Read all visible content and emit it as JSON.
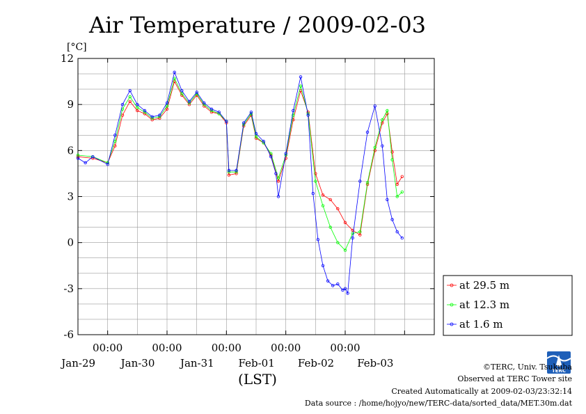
{
  "chart_data": {
    "type": "line",
    "title": "Air Temperature / 2009-02-03",
    "ylabel": "[°C]",
    "xlabel": "(LST)",
    "ylim": [
      -6,
      12
    ],
    "yticks": [
      "12",
      "9",
      "6",
      "3",
      "0",
      "-3",
      "-6"
    ],
    "xlim": [
      "2009-01-28T12:00",
      "2009-02-03T12:00"
    ],
    "xticks": [
      {
        "time": "00:00",
        "date": "Jan-29"
      },
      {
        "time": "00:00",
        "date": "Jan-30"
      },
      {
        "time": "00:00",
        "date": "Jan-31"
      },
      {
        "time": "00:00",
        "date": "Feb-01"
      },
      {
        "time": "00:00",
        "date": "Feb-02"
      },
      {
        "time": "",
        "date": "Feb-03"
      }
    ],
    "grid": true,
    "legend_position": "right-bottom",
    "series": [
      {
        "name": "at 29.5 m",
        "color": "#ff0000",
        "x": [
          "2009-01-28T12:00",
          "2009-01-28T18:00",
          "2009-01-29T00:00",
          "2009-01-29T03:00",
          "2009-01-29T06:00",
          "2009-01-29T09:00",
          "2009-01-29T12:00",
          "2009-01-29T15:00",
          "2009-01-29T18:00",
          "2009-01-29T21:00",
          "2009-01-30T00:00",
          "2009-01-30T03:00",
          "2009-01-30T06:00",
          "2009-01-30T09:00",
          "2009-01-30T12:00",
          "2009-01-30T15:00",
          "2009-01-30T18:00",
          "2009-01-30T21:00",
          "2009-01-31T00:00",
          "2009-01-31T01:00",
          "2009-01-31T04:00",
          "2009-01-31T07:00",
          "2009-01-31T10:00",
          "2009-01-31T12:00",
          "2009-01-31T15:00",
          "2009-01-31T18:00",
          "2009-01-31T21:00",
          "2009-02-01T00:00",
          "2009-02-01T03:00",
          "2009-02-01T06:00",
          "2009-02-01T09:00",
          "2009-02-01T12:00",
          "2009-02-01T15:00",
          "2009-02-01T18:00",
          "2009-02-01T21:00",
          "2009-02-02T00:00",
          "2009-02-02T03:00",
          "2009-02-02T06:00",
          "2009-02-02T09:00",
          "2009-02-02T12:00",
          "2009-02-02T15:00",
          "2009-02-02T17:00",
          "2009-02-02T19:00",
          "2009-02-02T21:00",
          "2009-02-02T23:00"
        ],
        "y": [
          5.6,
          5.5,
          5.2,
          6.3,
          8.3,
          9.2,
          8.6,
          8.4,
          8.0,
          8.1,
          8.7,
          10.5,
          9.6,
          9.0,
          9.6,
          8.9,
          8.5,
          8.4,
          7.8,
          4.4,
          4.5,
          7.6,
          8.3,
          6.8,
          6.5,
          5.7,
          4.0,
          5.5,
          8.0,
          9.9,
          8.5,
          4.5,
          3.1,
          2.8,
          2.2,
          1.3,
          0.8,
          0.5,
          3.8,
          6.0,
          7.8,
          8.4,
          5.9,
          3.8,
          4.3
        ]
      },
      {
        "name": "at 12.3 m",
        "color": "#00ff00",
        "x": [
          "2009-01-28T12:00",
          "2009-01-28T18:00",
          "2009-01-29T00:00",
          "2009-01-29T03:00",
          "2009-01-29T06:00",
          "2009-01-29T09:00",
          "2009-01-29T12:00",
          "2009-01-29T15:00",
          "2009-01-29T18:00",
          "2009-01-29T21:00",
          "2009-01-30T00:00",
          "2009-01-30T03:00",
          "2009-01-30T06:00",
          "2009-01-30T09:00",
          "2009-01-30T12:00",
          "2009-01-30T15:00",
          "2009-01-30T18:00",
          "2009-01-30T21:00",
          "2009-01-31T00:00",
          "2009-01-31T01:00",
          "2009-01-31T04:00",
          "2009-01-31T07:00",
          "2009-01-31T10:00",
          "2009-01-31T12:00",
          "2009-01-31T15:00",
          "2009-01-31T18:00",
          "2009-01-31T21:00",
          "2009-02-01T00:00",
          "2009-02-01T03:00",
          "2009-02-01T06:00",
          "2009-02-01T09:00",
          "2009-02-01T12:00",
          "2009-02-01T15:00",
          "2009-02-01T18:00",
          "2009-02-01T21:00",
          "2009-02-02T00:00",
          "2009-02-02T03:00",
          "2009-02-02T06:00",
          "2009-02-02T09:00",
          "2009-02-02T12:00",
          "2009-02-02T15:00",
          "2009-02-02T17:00",
          "2009-02-02T19:00",
          "2009-02-02T21:00",
          "2009-02-02T23:00"
        ],
        "y": [
          5.7,
          5.6,
          5.2,
          6.6,
          8.7,
          9.5,
          8.8,
          8.5,
          8.1,
          8.2,
          8.9,
          10.7,
          9.7,
          9.1,
          9.7,
          9.0,
          8.6,
          8.4,
          7.9,
          4.6,
          4.6,
          7.7,
          8.4,
          6.9,
          6.5,
          5.8,
          4.2,
          5.7,
          8.3,
          10.2,
          8.4,
          4.0,
          2.4,
          1.0,
          0.0,
          -0.5,
          0.6,
          0.7,
          3.9,
          6.2,
          8.0,
          8.6,
          5.4,
          3.0,
          3.3
        ]
      },
      {
        "name": "at 1.6 m",
        "color": "#0000ff",
        "x": [
          "2009-01-28T12:00",
          "2009-01-28T15:00",
          "2009-01-28T18:00",
          "2009-01-29T00:00",
          "2009-01-29T03:00",
          "2009-01-29T06:00",
          "2009-01-29T09:00",
          "2009-01-29T12:00",
          "2009-01-29T15:00",
          "2009-01-29T18:00",
          "2009-01-29T21:00",
          "2009-01-30T00:00",
          "2009-01-30T03:00",
          "2009-01-30T06:00",
          "2009-01-30T09:00",
          "2009-01-30T12:00",
          "2009-01-30T15:00",
          "2009-01-30T18:00",
          "2009-01-30T21:00",
          "2009-01-31T00:00",
          "2009-01-31T01:00",
          "2009-01-31T04:00",
          "2009-01-31T07:00",
          "2009-01-31T10:00",
          "2009-01-31T12:00",
          "2009-01-31T15:00",
          "2009-01-31T18:00",
          "2009-01-31T20:00",
          "2009-01-31T21:00",
          "2009-02-01T00:00",
          "2009-02-01T03:00",
          "2009-02-01T06:00",
          "2009-02-01T09:00",
          "2009-02-01T11:00",
          "2009-02-01T13:00",
          "2009-02-01T15:00",
          "2009-02-01T17:00",
          "2009-02-01T19:00",
          "2009-02-01T21:00",
          "2009-02-01T23:00",
          "2009-02-02T00:00",
          "2009-02-02T01:00",
          "2009-02-02T03:00",
          "2009-02-02T06:00",
          "2009-02-02T09:00",
          "2009-02-02T12:00",
          "2009-02-02T15:00",
          "2009-02-02T17:00",
          "2009-02-02T19:00",
          "2009-02-02T21:00",
          "2009-02-02T23:00"
        ],
        "y": [
          5.5,
          5.2,
          5.6,
          5.1,
          7.0,
          9.0,
          9.9,
          9.0,
          8.6,
          8.2,
          8.3,
          9.1,
          11.1,
          9.9,
          9.2,
          9.8,
          9.1,
          8.7,
          8.5,
          7.9,
          4.7,
          4.7,
          7.8,
          8.5,
          7.1,
          6.6,
          5.6,
          4.5,
          3.0,
          5.8,
          8.6,
          10.8,
          8.3,
          3.2,
          0.2,
          -1.5,
          -2.5,
          -2.8,
          -2.7,
          -3.1,
          -3.0,
          -3.3,
          0.3,
          4.0,
          7.2,
          8.9,
          6.3,
          2.8,
          1.5,
          0.7,
          0.3
        ]
      }
    ]
  },
  "footer": {
    "copyright": "©TERC, Univ. Tsukuba",
    "observed": "Observed at TERC Tower site",
    "created": "Created Automatically at 2009-02-03/23:32:14",
    "source": "Data source : /home/hojyo/new/TERC-data/sorted_data/MET.30m.dat",
    "logo_text": "TERC"
  }
}
